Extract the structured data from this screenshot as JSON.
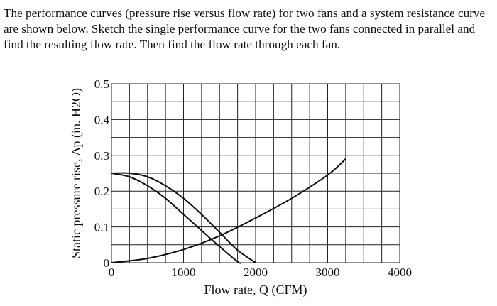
{
  "problem": {
    "text": "The performance curves (pressure rise versus flow rate) for two fans and a system resistance curve are shown below. Sketch the single performance curve for the two fans connected in parallel and find the resulting flow rate. Then find the flow rate through each fan."
  },
  "chart_data": {
    "type": "line",
    "xlabel": "Flow rate, Q (CFM)",
    "ylabel": "Static pressure rise, Δp (in. H2O)",
    "xlim": [
      0,
      4000
    ],
    "ylim": [
      0,
      0.5
    ],
    "xticks": [
      {
        "v": 0,
        "label": "0"
      },
      {
        "v": 1000,
        "label": "1000"
      },
      {
        "v": 2000,
        "label": "2000"
      },
      {
        "v": 3000,
        "label": "3000"
      },
      {
        "v": 4000,
        "label": "4000"
      }
    ],
    "yticks": [
      {
        "v": 0,
        "label": "0"
      },
      {
        "v": 0.1,
        "label": "0.1"
      },
      {
        "v": 0.2,
        "label": "0.2"
      },
      {
        "v": 0.3,
        "label": "0.3"
      },
      {
        "v": 0.4,
        "label": "0.4"
      },
      {
        "v": 0.5,
        "label": "0.5"
      }
    ],
    "grid": true,
    "grid_step_x": 250,
    "grid_step_y": 0.05,
    "series": [
      {
        "x": [
          0,
          250,
          500,
          750,
          1000,
          1250,
          1500,
          1750,
          1800
        ],
        "y": [
          0.25,
          0.24,
          0.215,
          0.18,
          0.135,
          0.09,
          0.045,
          0.003,
          0
        ]
      },
      {
        "x": [
          0,
          250,
          500,
          750,
          1000,
          1250,
          1500,
          1750,
          2000
        ],
        "y": [
          0.25,
          0.25,
          0.24,
          0.215,
          0.18,
          0.135,
          0.085,
          0.035,
          0
        ]
      },
      {
        "x": [
          0,
          500,
          1000,
          1500,
          2000,
          2500,
          3000,
          3250
        ],
        "y": [
          0,
          0.012,
          0.037,
          0.075,
          0.125,
          0.18,
          0.245,
          0.29
        ]
      }
    ]
  }
}
